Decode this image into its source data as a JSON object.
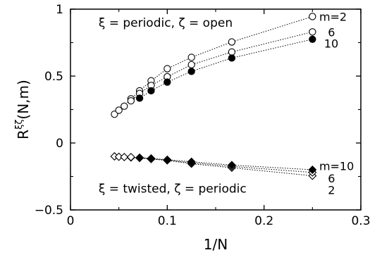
{
  "chart_data": {
    "type": "scatter",
    "title": "",
    "xlabel": "1/N",
    "ylabel": "R",
    "ylabel_superscript": "ξζ",
    "ylabel_args": "(N,m)",
    "xlim": [
      0,
      0.3
    ],
    "ylim": [
      -0.5,
      1
    ],
    "x_ticks": [
      "0",
      "0.1",
      "0.2",
      "0.3"
    ],
    "x_tick_values": [
      0,
      0.1,
      0.2,
      0.3
    ],
    "y_ticks": [
      "−0.5",
      "0",
      "0.5",
      "1"
    ],
    "y_tick_values": [
      -0.5,
      0,
      0.5,
      1
    ],
    "grid": false,
    "annotations": [
      {
        "text": "ξ = periodic, ζ = open",
        "x": 0.029,
        "y": 0.9
      },
      {
        "text": "ξ = twisted, ζ = periodic",
        "x": 0.029,
        "y": -0.34
      }
    ],
    "series_labels": [
      {
        "text": "m=2",
        "x": 0.257,
        "y": 0.945
      },
      {
        "text": "6",
        "x": 0.266,
        "y": 0.83
      },
      {
        "text": "10",
        "x": 0.262,
        "y": 0.745
      },
      {
        "text": "m=10",
        "x": 0.257,
        "y": -0.172
      },
      {
        "text": "6",
        "x": 0.266,
        "y": -0.262
      },
      {
        "text": "2",
        "x": 0.266,
        "y": -0.35
      }
    ],
    "series": [
      {
        "group": "periodic-open",
        "m": 2,
        "marker": "open-circle",
        "line": true,
        "points": [
          [
            0.04545,
            0.215
          ],
          [
            0.05,
            0.245
          ],
          [
            0.05556,
            0.275
          ],
          [
            0.0625,
            0.33
          ],
          [
            0.07143,
            0.39
          ],
          [
            0.08333,
            0.465
          ],
          [
            0.1,
            0.555
          ],
          [
            0.125,
            0.64
          ],
          [
            0.16667,
            0.755
          ],
          [
            0.25,
            0.945
          ]
        ]
      },
      {
        "group": "periodic-open",
        "m": 6,
        "marker": "open-circle",
        "line": true,
        "points": [
          [
            0.0625,
            0.315
          ],
          [
            0.07143,
            0.37
          ],
          [
            0.08333,
            0.43
          ],
          [
            0.1,
            0.495
          ],
          [
            0.125,
            0.585
          ],
          [
            0.16667,
            0.68
          ],
          [
            0.25,
            0.83
          ]
        ]
      },
      {
        "group": "periodic-open",
        "m": 10,
        "marker": "filled-circle",
        "line": true,
        "points": [
          [
            0.07143,
            0.335
          ],
          [
            0.08333,
            0.39
          ],
          [
            0.1,
            0.455
          ],
          [
            0.125,
            0.535
          ],
          [
            0.16667,
            0.635
          ],
          [
            0.25,
            0.775
          ]
        ]
      },
      {
        "group": "twisted-periodic",
        "m": 2,
        "marker": "open-diamond",
        "line": true,
        "points": [
          [
            0.04545,
            -0.1
          ],
          [
            0.05,
            -0.103
          ],
          [
            0.05556,
            -0.105
          ],
          [
            0.0625,
            -0.108
          ],
          [
            0.07143,
            -0.112
          ],
          [
            0.08333,
            -0.12
          ],
          [
            0.1,
            -0.13
          ],
          [
            0.125,
            -0.155
          ],
          [
            0.16667,
            -0.185
          ],
          [
            0.25,
            -0.245
          ]
        ]
      },
      {
        "group": "twisted-periodic",
        "m": 6,
        "marker": "open-diamond",
        "line": true,
        "points": [
          [
            0.0625,
            -0.105
          ],
          [
            0.07143,
            -0.11
          ],
          [
            0.08333,
            -0.118
          ],
          [
            0.1,
            -0.128
          ],
          [
            0.125,
            -0.148
          ],
          [
            0.16667,
            -0.175
          ],
          [
            0.25,
            -0.22
          ]
        ]
      },
      {
        "group": "twisted-periodic",
        "m": 10,
        "marker": "filled-diamond",
        "line": true,
        "points": [
          [
            0.07143,
            -0.11
          ],
          [
            0.08333,
            -0.115
          ],
          [
            0.1,
            -0.125
          ],
          [
            0.125,
            -0.14
          ],
          [
            0.16667,
            -0.165
          ],
          [
            0.25,
            -0.2
          ]
        ]
      }
    ]
  }
}
